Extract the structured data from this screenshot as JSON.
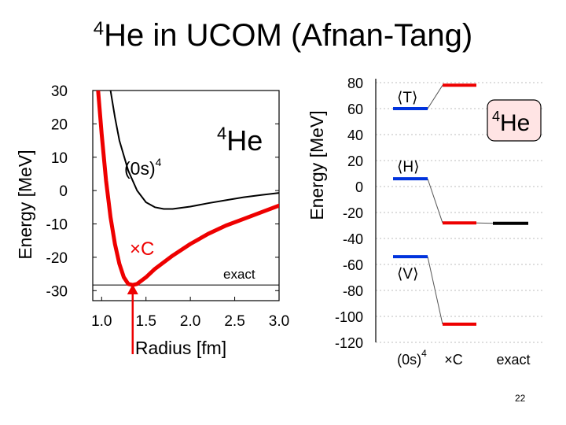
{
  "title": {
    "sup": "4",
    "main": "He in UCOM (Afnan-Tang)"
  },
  "page_number": "22",
  "chart_data": [
    {
      "type": "line",
      "xlabel": "Radius [fm]",
      "ylabel": "Energy [MeV]",
      "xlim": [
        0.9,
        3.0
      ],
      "ylim": [
        -33,
        30
      ],
      "xticks": [
        "1.0",
        "1.5",
        "2.0",
        "2.5",
        "3.0"
      ],
      "yticks": [
        "30",
        "20",
        "10",
        "0",
        "-10",
        "-20",
        "-30"
      ],
      "grid": false,
      "annotations": {
        "nucleus_sup": "4",
        "nucleus": "He",
        "bare_label": "(0s)",
        "bare_sup": "4",
        "corr_label": "×C",
        "exact_label": "exact"
      },
      "reference_line": {
        "name": "exact",
        "y": -28.3,
        "color": "#000000"
      },
      "series": [
        {
          "color": "#000000",
          "x": [
            1.1,
            1.15,
            1.2,
            1.3,
            1.4,
            1.5,
            1.6,
            1.7,
            1.8,
            2.0,
            2.2,
            2.4,
            2.6,
            2.8,
            3.0
          ],
          "y": [
            30,
            22,
            15,
            6,
            0,
            -3.5,
            -5.0,
            -5.5,
            -5.5,
            -4.8,
            -3.8,
            -2.9,
            -2.0,
            -1.3,
            -0.7
          ]
        },
        {
          "color": "#ee0000",
          "x": [
            0.96,
            1.0,
            1.05,
            1.1,
            1.15,
            1.2,
            1.25,
            1.3,
            1.35,
            1.4,
            1.5,
            1.6,
            1.7,
            1.8,
            2.0,
            2.2,
            2.4,
            2.6,
            2.8,
            3.0
          ],
          "y": [
            30,
            17,
            3,
            -8,
            -16,
            -22,
            -26,
            -28,
            -28.3,
            -28,
            -26,
            -23.5,
            -21.5,
            -19.5,
            -16,
            -13,
            -10.5,
            -8.5,
            -6.5,
            -4.5
          ]
        }
      ],
      "marker": {
        "x": 1.35,
        "color": "#ee0000"
      }
    },
    {
      "type": "bar",
      "ylabel": "Energy [MeV]",
      "ylim": [
        -120,
        80
      ],
      "yticks": [
        "80",
        "60",
        "40",
        "20",
        "0",
        "-20",
        "-40",
        "-60",
        "-80",
        "-100",
        "-120"
      ],
      "categories": [
        "(0s)",
        "×C",
        "exact"
      ],
      "category_sups": [
        "4",
        "",
        ""
      ],
      "grid": true,
      "label_box": {
        "sup": "4",
        "text": "He",
        "fill": "#ffe4e4",
        "stroke": "#000000"
      },
      "levels": [
        {
          "name": "⟨T⟩",
          "values": [
            60,
            78
          ],
          "colors": [
            "#0033dd",
            "#ee0000"
          ]
        },
        {
          "name": "⟨H⟩",
          "values": [
            6,
            -28
          ],
          "colors": [
            "#0033dd",
            "#ee0000"
          ]
        },
        {
          "name": "⟨V⟩",
          "values": [
            -54,
            -106
          ],
          "colors": [
            "#0033dd",
            "#ee0000"
          ]
        }
      ],
      "exact": {
        "value": -28.3,
        "color": "#000000"
      }
    }
  ]
}
